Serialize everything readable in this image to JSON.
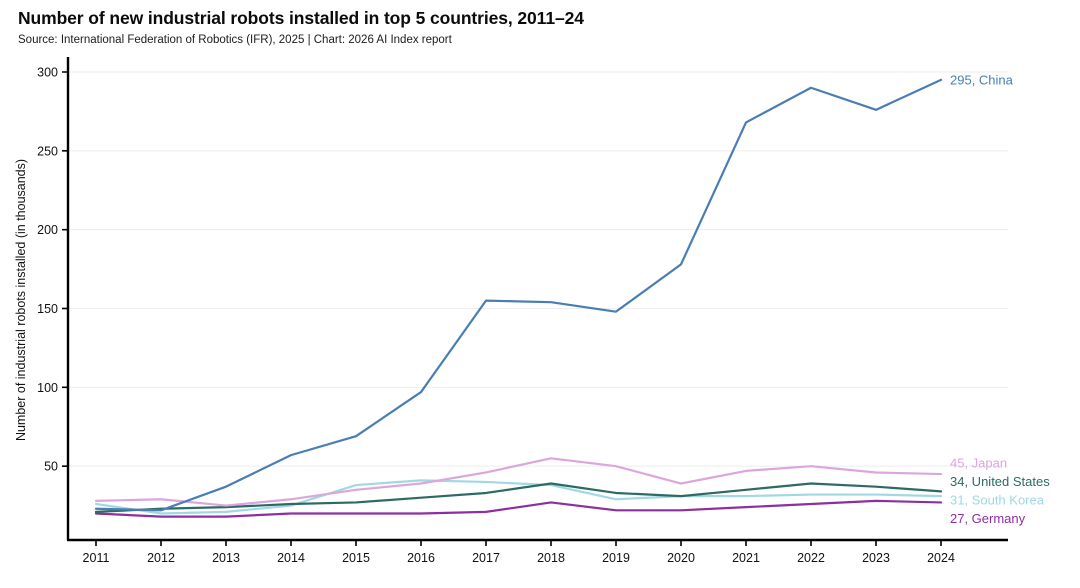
{
  "header": {
    "title": "Number of new industrial robots installed in top 5 countries, 2011–24",
    "subtitle": "Source: International Federation of Robotics (IFR), 2025 | Chart: 2026 AI Index report"
  },
  "chart_data": {
    "type": "line",
    "title": "Number of new industrial robots installed in top 5 countries, 2011–24",
    "xlabel": "",
    "ylabel": "Number of industrial robots installed (in thousands)",
    "x": [
      "2011",
      "2012",
      "2013",
      "2014",
      "2015",
      "2016",
      "2017",
      "2018",
      "2019",
      "2020",
      "2021",
      "2022",
      "2023",
      "2024"
    ],
    "yticks": [
      50,
      100,
      150,
      200,
      250,
      300
    ],
    "ylim": [
      0,
      310
    ],
    "grid": true,
    "legend_position": "right-end-labels",
    "series": [
      {
        "name": "China",
        "color": "#4a7db5",
        "end_label": "295, China",
        "values": [
          23,
          22,
          37,
          57,
          69,
          97,
          155,
          154,
          148,
          178,
          268,
          290,
          276,
          295
        ]
      },
      {
        "name": "Japan",
        "color": "#dba6de",
        "end_label": "45, Japan",
        "values": [
          28,
          29,
          25,
          29,
          35,
          39,
          46,
          55,
          50,
          39,
          47,
          50,
          46,
          45
        ]
      },
      {
        "name": "United States",
        "color": "#2c6b64",
        "end_label": "34, United States",
        "values": [
          21,
          23,
          24,
          26,
          27,
          30,
          33,
          39,
          33,
          31,
          35,
          39,
          37,
          34
        ]
      },
      {
        "name": "South Korea",
        "color": "#a0d9e3",
        "end_label": "31, South Korea",
        "values": [
          26,
          20,
          21,
          25,
          38,
          41,
          40,
          38,
          29,
          31,
          31,
          32,
          32,
          31
        ]
      },
      {
        "name": "Germany",
        "color": "#8d2fa0",
        "end_label": "27, Germany",
        "values": [
          20,
          18,
          18,
          20,
          20,
          20,
          21,
          27,
          22,
          22,
          24,
          26,
          28,
          27
        ]
      }
    ]
  }
}
